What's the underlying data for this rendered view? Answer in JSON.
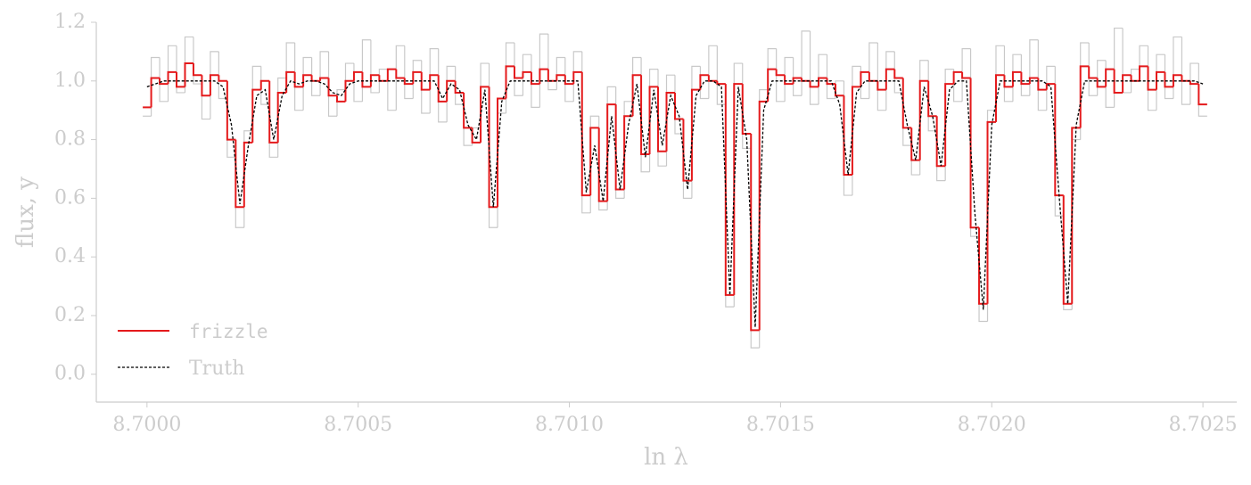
{
  "chart_data": {
    "type": "line",
    "xlabel": "ln λ",
    "ylabel": "flux, y",
    "xlim": [
      8.69988,
      8.70258
    ],
    "ylim": [
      -0.095,
      1.2
    ],
    "xticks": [
      {
        "value": 8.7,
        "label": "8.7000"
      },
      {
        "value": 8.7005,
        "label": "8.7005"
      },
      {
        "value": 8.701,
        "label": "8.7010"
      },
      {
        "value": 8.7015,
        "label": "8.7015"
      },
      {
        "value": 8.702,
        "label": "8.7020"
      },
      {
        "value": 8.7025,
        "label": "8.7025"
      }
    ],
    "yticks": [
      {
        "value": 0,
        "label": "0.0"
      },
      0.2,
      0.4,
      0.6,
      0.8,
      {
        "value": 1,
        "label": "1.0"
      },
      1.2
    ],
    "legend": "lower left",
    "x": [
      8.7,
      8.70002,
      8.70004,
      8.70006,
      8.70008,
      8.7001,
      8.70012,
      8.70014,
      8.70016,
      8.70018,
      8.7002,
      8.70022,
      8.70024,
      8.70026,
      8.70028,
      8.7003,
      8.70032,
      8.70034,
      8.70036,
      8.70038,
      8.7004,
      8.70042,
      8.70044,
      8.70046,
      8.70048,
      8.7005,
      8.70052,
      8.70054,
      8.70056,
      8.70058,
      8.7006,
      8.70062,
      8.70064,
      8.70066,
      8.70068,
      8.7007,
      8.70072,
      8.70074,
      8.70076,
      8.70078,
      8.7008,
      8.70082,
      8.70084,
      8.70086,
      8.70088,
      8.7009,
      8.70092,
      8.70094,
      8.70096,
      8.70098,
      8.701,
      8.70102,
      8.70104,
      8.70106,
      8.70108,
      8.7011,
      8.70112,
      8.70114,
      8.70116,
      8.70118,
      8.7012,
      8.70122,
      8.70124,
      8.70126,
      8.70128,
      8.7013,
      8.70132,
      8.70134,
      8.70136,
      8.70138,
      8.7014,
      8.70142,
      8.70144,
      8.70146,
      8.70148,
      8.7015,
      8.70152,
      8.70154,
      8.70156,
      8.70158,
      8.7016,
      8.70162,
      8.70164,
      8.70166,
      8.70168,
      8.7017,
      8.70172,
      8.70174,
      8.70176,
      8.70178,
      8.7018,
      8.70182,
      8.70184,
      8.70186,
      8.70188,
      8.7019,
      8.70192,
      8.70194,
      8.70196,
      8.70198,
      8.702,
      8.70202,
      8.70204,
      8.70206,
      8.70208,
      8.7021,
      8.70212,
      8.70214,
      8.70216,
      8.70218,
      8.7022,
      8.70222,
      8.70224,
      8.70226,
      8.70228,
      8.7023,
      8.70232,
      8.70234,
      8.70236,
      8.70238,
      8.7024,
      8.70242,
      8.70244,
      8.70246,
      8.70248,
      8.7025
    ],
    "series": [
      {
        "color": "#bbbbbb",
        "style": "step",
        "values": [
          0.88,
          1.08,
          0.93,
          1.12,
          0.96,
          1.15,
          0.99,
          0.87,
          1.1,
          0.94,
          0.74,
          0.5,
          0.83,
          1.05,
          0.92,
          0.74,
          1.01,
          1.13,
          0.9,
          1.08,
          0.95,
          1.1,
          0.88,
          0.97,
          1.06,
          0.93,
          1.14,
          0.96,
          1.04,
          0.9,
          1.12,
          0.94,
          1.07,
          0.89,
          1.11,
          0.86,
          1.05,
          0.92,
          0.78,
          0.84,
          1.06,
          0.5,
          0.89,
          1.13,
          0.95,
          1.09,
          0.91,
          1.16,
          0.97,
          1.08,
          0.93,
          1.1,
          0.55,
          0.88,
          0.56,
          0.98,
          0.6,
          0.93,
          1.08,
          0.69,
          1.04,
          0.71,
          1.02,
          0.82,
          0.6,
          1.05,
          0.94,
          1.12,
          0.92,
          0.23,
          1.06,
          0.77,
          0.09,
          0.97,
          1.11,
          0.93,
          1.08,
          0.95,
          1.17,
          0.92,
          1.09,
          0.94,
          1.0,
          0.61,
          1.05,
          0.94,
          1.13,
          0.9,
          1.1,
          0.96,
          0.78,
          0.68,
          1.07,
          0.83,
          0.66,
          1.04,
          0.93,
          1.11,
          0.47,
          0.18,
          0.9,
          1.12,
          0.93,
          1.09,
          0.95,
          1.14,
          0.9,
          1.05,
          0.54,
          0.22,
          0.8,
          1.13,
          0.95,
          1.07,
          0.91,
          1.18,
          0.96,
          1.04,
          1.12,
          0.9,
          1.09,
          0.94,
          1.15,
          0.92,
          1.06,
          0.88
        ]
      },
      {
        "name": "frizzle",
        "color": "#e41a1c",
        "style": "step",
        "values": [
          0.91,
          1.01,
          0.99,
          1.03,
          0.98,
          1.06,
          1.02,
          0.95,
          1.02,
          1.0,
          0.8,
          0.57,
          0.79,
          0.97,
          1.0,
          0.79,
          0.96,
          1.03,
          0.98,
          1.02,
          1.0,
          1.01,
          0.95,
          0.93,
          1.0,
          1.03,
          0.98,
          1.02,
          1.0,
          1.04,
          1.01,
          0.99,
          1.03,
          0.97,
          1.02,
          0.93,
          1.0,
          0.96,
          0.84,
          0.79,
          0.98,
          0.57,
          0.94,
          1.05,
          1.01,
          1.03,
          0.99,
          1.04,
          1.0,
          1.02,
          0.99,
          1.03,
          0.61,
          0.84,
          0.59,
          0.92,
          0.63,
          0.88,
          1.02,
          0.75,
          0.98,
          0.76,
          0.96,
          0.87,
          0.66,
          0.97,
          1.02,
          1.0,
          0.99,
          0.27,
          0.99,
          0.82,
          0.15,
          0.93,
          1.04,
          1.02,
          0.99,
          1.01,
          1.0,
          0.98,
          1.01,
          0.99,
          0.95,
          0.68,
          0.98,
          1.03,
          1.0,
          0.97,
          1.04,
          1.01,
          0.84,
          0.73,
          1.0,
          0.88,
          0.71,
          0.99,
          1.03,
          1.01,
          0.5,
          0.24,
          0.86,
          1.02,
          0.98,
          1.03,
          0.99,
          1.01,
          0.97,
          0.99,
          0.61,
          0.24,
          0.84,
          1.05,
          1.01,
          0.98,
          1.04,
          0.96,
          1.02,
          1.0,
          1.05,
          0.97,
          1.03,
          0.98,
          1.02,
          1.0,
          0.99,
          0.92
        ]
      },
      {
        "name": "Truth",
        "color": "#000000",
        "style": "dashed",
        "values": [
          0.98,
          0.99,
          1.0,
          1.0,
          1.0,
          1.0,
          1.0,
          1.0,
          1.0,
          0.98,
          0.85,
          0.58,
          0.78,
          0.95,
          0.97,
          0.8,
          0.95,
          1.0,
          0.99,
          1.0,
          1.0,
          0.99,
          0.96,
          0.95,
          0.99,
          1.0,
          1.0,
          1.0,
          1.0,
          1.0,
          1.0,
          1.0,
          1.0,
          1.0,
          1.0,
          0.94,
          0.99,
          0.97,
          0.85,
          0.8,
          0.97,
          0.57,
          0.93,
          1.0,
          1.0,
          1.0,
          1.0,
          1.0,
          1.0,
          1.0,
          1.0,
          1.0,
          0.62,
          0.78,
          0.59,
          0.88,
          0.63,
          0.85,
          0.99,
          0.74,
          0.97,
          0.78,
          0.95,
          0.88,
          0.63,
          0.95,
          1.0,
          1.0,
          0.98,
          0.27,
          0.98,
          0.8,
          0.16,
          0.9,
          1.0,
          1.0,
          1.0,
          1.0,
          1.0,
          1.0,
          1.0,
          1.0,
          0.92,
          0.68,
          0.96,
          1.0,
          1.0,
          1.0,
          1.0,
          1.0,
          0.85,
          0.73,
          0.98,
          0.88,
          0.71,
          0.97,
          1.0,
          1.0,
          0.55,
          0.22,
          0.85,
          1.0,
          1.0,
          1.0,
          1.0,
          1.0,
          1.0,
          0.98,
          0.6,
          0.24,
          0.85,
          1.0,
          1.0,
          1.0,
          1.0,
          1.0,
          1.0,
          1.0,
          1.0,
          1.0,
          1.0,
          1.0,
          1.0,
          1.0,
          1.0,
          0.99
        ]
      }
    ]
  }
}
